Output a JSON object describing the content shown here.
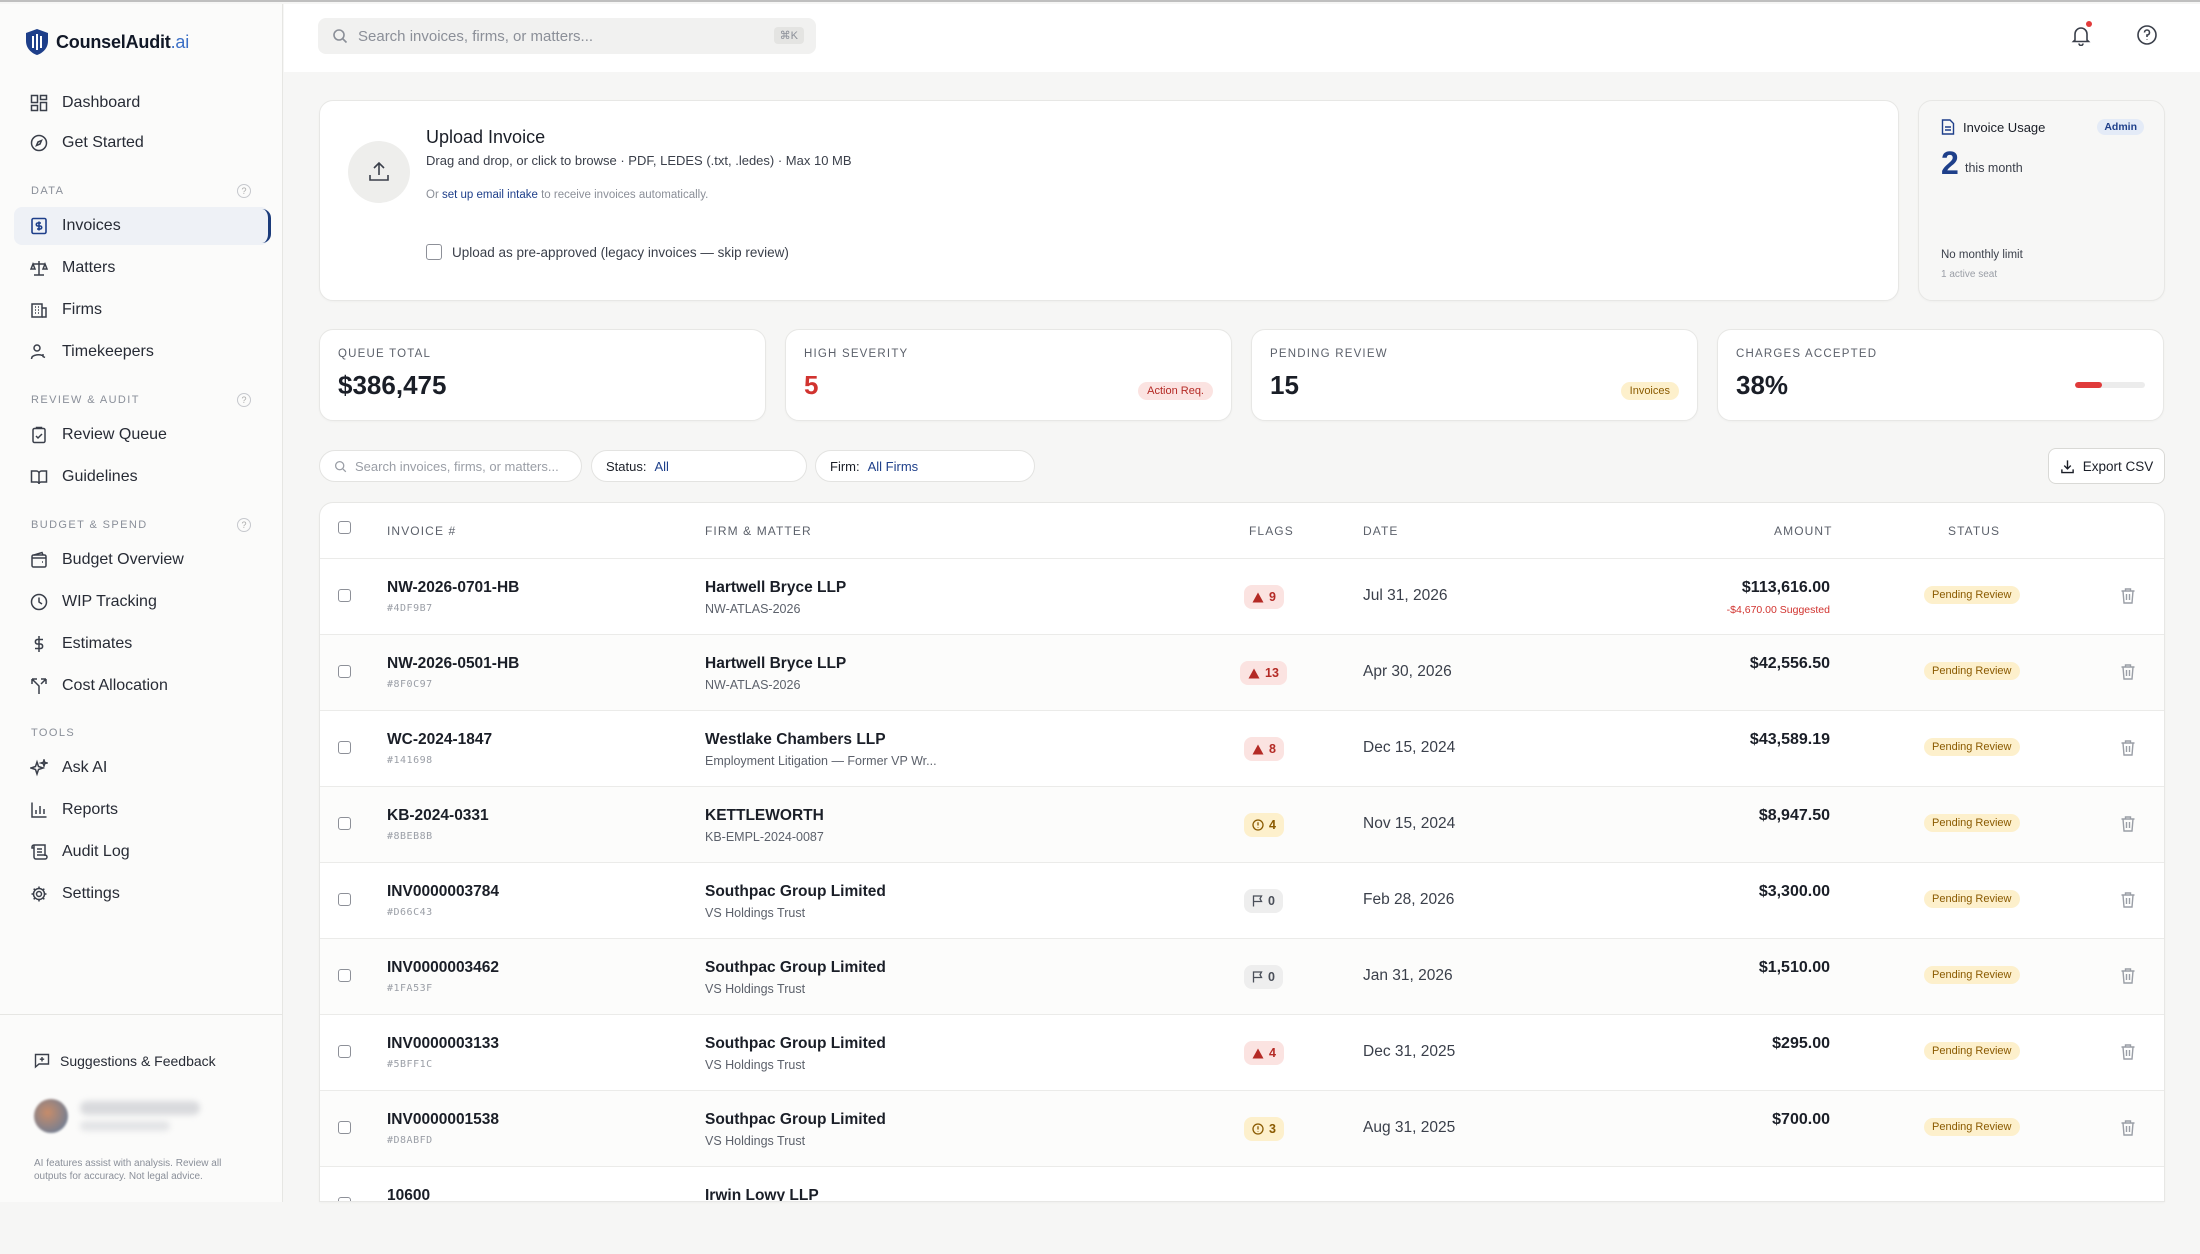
{
  "brand": {
    "name": "CounselAudit",
    "suffix": ".ai"
  },
  "nav": {
    "top": [
      {
        "label": "Dashboard"
      },
      {
        "label": "Get Started"
      }
    ],
    "sections": [
      {
        "label": "DATA",
        "items": [
          {
            "label": "Invoices"
          },
          {
            "label": "Matters"
          },
          {
            "label": "Firms"
          },
          {
            "label": "Timekeepers"
          }
        ]
      },
      {
        "label": "REVIEW & AUDIT",
        "items": [
          {
            "label": "Review Queue"
          },
          {
            "label": "Guidelines"
          }
        ]
      },
      {
        "label": "BUDGET & SPEND",
        "items": [
          {
            "label": "Budget Overview"
          },
          {
            "label": "WIP Tracking"
          },
          {
            "label": "Estimates"
          },
          {
            "label": "Cost Allocation"
          }
        ]
      },
      {
        "label": "TOOLS",
        "items": [
          {
            "label": "Ask AI"
          },
          {
            "label": "Reports"
          },
          {
            "label": "Audit Log"
          },
          {
            "label": "Settings"
          }
        ]
      }
    ],
    "feedback": "Suggestions & Feedback",
    "disclaimer": "AI features assist with analysis. Review all outputs for accuracy. Not legal advice."
  },
  "topbar": {
    "search_placeholder": "Search invoices, firms, or matters...",
    "shortcut": "⌘K"
  },
  "upload": {
    "title": "Upload Invoice",
    "subtitle": "Drag and drop, or click to browse · PDF, LEDES (.txt, .ledes) · Max 10 MB",
    "or_prefix": "Or",
    "email_link": "set up email intake",
    "or_suffix": "to receive invoices automatically.",
    "preapproved_label": "Upload as pre-approved (legacy invoices — skip review)"
  },
  "usage": {
    "title": "Invoice Usage",
    "badge": "Admin",
    "count": "2",
    "count_label": "this month",
    "limit": "No monthly limit",
    "seats": "1 active seat"
  },
  "kpis": [
    {
      "label": "QUEUE TOTAL",
      "value": "$386,475"
    },
    {
      "label": "HIGH SEVERITY",
      "value": "5",
      "badge": "Action Req."
    },
    {
      "label": "PENDING REVIEW",
      "value": "15",
      "badge": "Invoices"
    },
    {
      "label": "CHARGES ACCEPTED",
      "value": "38%",
      "progress": 0.38
    }
  ],
  "filters": {
    "search_placeholder": "Search invoices, firms, or matters...",
    "status_label": "Status:",
    "status_value": "All",
    "firm_label": "Firm:",
    "firm_value": "All Firms",
    "export": "Export CSV"
  },
  "table": {
    "headers": {
      "invoice": "INVOICE #",
      "firm": "FIRM & MATTER",
      "flags": "FLAGS",
      "date": "DATE",
      "amount": "AMOUNT",
      "status": "STATUS"
    },
    "rows": [
      {
        "invoice": "NW-2026-0701-HB",
        "hash": "#4DF9B7",
        "firm": "Hartwell Bryce LLP",
        "matter": "NW-ATLAS-2026",
        "flag_type": "red",
        "flag_count": "9",
        "date": "Jul 31, 2026",
        "amount": "$113,616.00",
        "suggest": "-$4,670.00 Suggested",
        "status": "Pending Review"
      },
      {
        "invoice": "NW-2026-0501-HB",
        "hash": "#8F0C97",
        "firm": "Hartwell Bryce LLP",
        "matter": "NW-ATLAS-2026",
        "flag_type": "red",
        "flag_count": "13",
        "date": "Apr 30, 2026",
        "amount": "$42,556.50",
        "suggest": "",
        "status": "Pending Review"
      },
      {
        "invoice": "WC-2024-1847",
        "hash": "#141698",
        "firm": "Westlake Chambers LLP",
        "matter": "Employment Litigation — Former VP Wr...",
        "flag_type": "red",
        "flag_count": "8",
        "date": "Dec 15, 2024",
        "amount": "$43,589.19",
        "suggest": "",
        "status": "Pending Review"
      },
      {
        "invoice": "KB-2024-0331",
        "hash": "#8BEB8B",
        "firm": "KETTLEWORTH",
        "matter": "KB-EMPL-2024-0087",
        "flag_type": "yellow",
        "flag_count": "4",
        "date": "Nov 15, 2024",
        "amount": "$8,947.50",
        "suggest": "",
        "status": "Pending Review"
      },
      {
        "invoice": "INV0000003784",
        "hash": "#D66C43",
        "firm": "Southpac Group Limited",
        "matter": "VS Holdings Trust",
        "flag_type": "gray",
        "flag_count": "0",
        "date": "Feb 28, 2026",
        "amount": "$3,300.00",
        "suggest": "",
        "status": "Pending Review"
      },
      {
        "invoice": "INV0000003462",
        "hash": "#1FA53F",
        "firm": "Southpac Group Limited",
        "matter": "VS Holdings Trust",
        "flag_type": "gray",
        "flag_count": "0",
        "date": "Jan 31, 2026",
        "amount": "$1,510.00",
        "suggest": "",
        "status": "Pending Review"
      },
      {
        "invoice": "INV0000003133",
        "hash": "#5BFF1C",
        "firm": "Southpac Group Limited",
        "matter": "VS Holdings Trust",
        "flag_type": "red",
        "flag_count": "4",
        "date": "Dec 31, 2025",
        "amount": "$295.00",
        "suggest": "",
        "status": "Pending Review"
      },
      {
        "invoice": "INV0000001538",
        "hash": "#D8ABFD",
        "firm": "Southpac Group Limited",
        "matter": "VS Holdings Trust",
        "flag_type": "yellow",
        "flag_count": "3",
        "date": "Aug 31, 2025",
        "amount": "$700.00",
        "suggest": "",
        "status": "Pending Review"
      },
      {
        "invoice": "10600",
        "hash": "",
        "firm": "Irwin Lowy LLP",
        "matter": "",
        "flag_type": "yellow",
        "flag_count": "",
        "date": "",
        "amount": "",
        "suggest": "",
        "status": ""
      }
    ]
  }
}
